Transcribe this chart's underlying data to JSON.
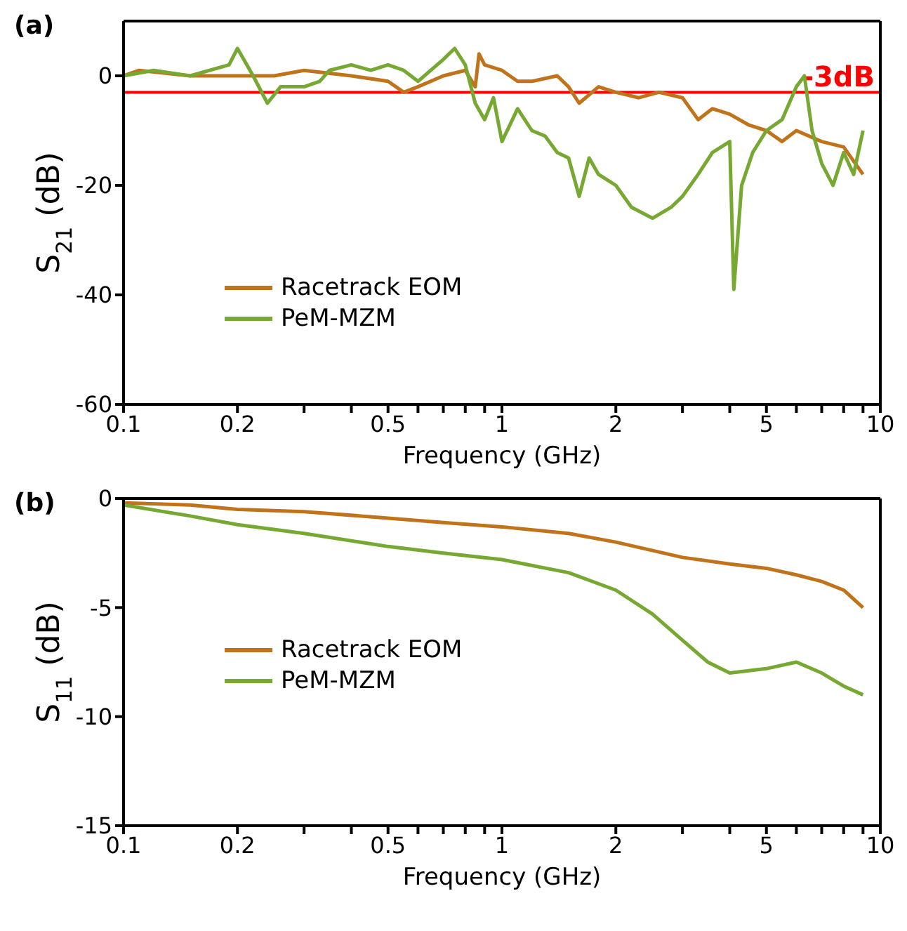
{
  "chart_data": [
    {
      "type": "line",
      "title": "(a)",
      "xlabel": "Frequency (GHz)",
      "ylabel": "S$_{21}$ (dB)",
      "log": "x",
      "grid": false,
      "legend": "center left",
      "marker": "none",
      "line_style": "solid",
      "xlim": [
        0.1,
        10
      ],
      "xticks": [
        0.1,
        {
          "value": 0.2,
          "label": "0.2"
        },
        {
          "value": 0.3,
          "label": null
        },
        {
          "value": 0.4,
          "label": null
        },
        {
          "value": 0.5,
          "label": "0.5"
        },
        {
          "value": 0.6,
          "label": null
        },
        {
          "value": 0.7,
          "label": null
        },
        {
          "value": 0.8,
          "label": null
        },
        {
          "value": 0.9,
          "label": null
        },
        1,
        2,
        {
          "value": 3,
          "label": null
        },
        {
          "value": 4,
          "label": null
        },
        5,
        {
          "value": 6,
          "label": null
        },
        {
          "value": 7,
          "label": null
        },
        {
          "value": 8,
          "label": null
        },
        {
          "value": 9,
          "label": null
        },
        10
      ],
      "ylim": [
        -60,
        10
      ],
      "yticks": [
        -60,
        -40,
        -20,
        0
      ],
      "ref_lines": [
        {
          "axis": "y",
          "value": -3,
          "label": "-3dB",
          "color": "#ff0000"
        }
      ],
      "series": [
        {
          "name": "Racetrack EOM",
          "color": "#c0731a",
          "x": [
            0.1,
            0.11,
            0.15,
            0.2,
            0.25,
            0.3,
            0.4,
            0.5,
            0.55,
            0.6,
            0.7,
            0.8,
            0.85,
            0.87,
            0.9,
            1.0,
            1.1,
            1.2,
            1.4,
            1.5,
            1.6,
            1.8,
            2.0,
            2.3,
            2.6,
            3.0,
            3.3,
            3.6,
            4.0,
            4.5,
            5.0,
            5.5,
            6.0,
            7.0,
            8.0,
            9.0
          ],
          "values": [
            0,
            1,
            0,
            0,
            0,
            1,
            0,
            -1,
            -3,
            -2,
            0,
            1,
            -2,
            4,
            2,
            1,
            -1,
            -1,
            0,
            -2,
            -5,
            -2,
            -3,
            -4,
            -3,
            -4,
            -8,
            -6,
            -7,
            -9,
            -10,
            -12,
            -10,
            -12,
            -13,
            -18
          ]
        },
        {
          "name": "PeM-MZM",
          "color": "#76a832",
          "x": [
            0.1,
            0.12,
            0.15,
            0.19,
            0.2,
            0.22,
            0.24,
            0.26,
            0.3,
            0.33,
            0.35,
            0.4,
            0.45,
            0.5,
            0.55,
            0.6,
            0.7,
            0.75,
            0.8,
            0.85,
            0.9,
            0.95,
            1.0,
            1.1,
            1.2,
            1.3,
            1.4,
            1.5,
            1.6,
            1.7,
            1.8,
            2.0,
            2.2,
            2.5,
            2.8,
            3.0,
            3.3,
            3.6,
            4.0,
            4.1,
            4.3,
            4.6,
            5.0,
            5.5,
            6.0,
            6.3,
            6.6,
            7.0,
            7.5,
            8.0,
            8.5,
            9.0
          ],
          "values": [
            0,
            1,
            0,
            2,
            5,
            0,
            -5,
            -2,
            -2,
            -1,
            1,
            2,
            1,
            2,
            1,
            -1,
            3,
            5,
            2,
            -5,
            -8,
            -4,
            -12,
            -6,
            -10,
            -11,
            -14,
            -15,
            -22,
            -15,
            -18,
            -20,
            -24,
            -26,
            -24,
            -22,
            -18,
            -14,
            -12,
            -39,
            -20,
            -14,
            -10,
            -8,
            -2,
            0,
            -10,
            -16,
            -20,
            -14,
            -18,
            -10
          ]
        }
      ]
    },
    {
      "type": "line",
      "title": "(b)",
      "xlabel": "Frequency (GHz)",
      "ylabel": "S$_{11}$ (dB)",
      "log": "x",
      "grid": false,
      "legend": "bottom left",
      "marker": "none",
      "line_style": "solid",
      "xlim": [
        0.1,
        10
      ],
      "xticks": [
        0.1,
        {
          "value": 0.2,
          "label": "0.2"
        },
        {
          "value": 0.3,
          "label": null
        },
        {
          "value": 0.4,
          "label": null
        },
        {
          "value": 0.5,
          "label": "0.5"
        },
        {
          "value": 0.6,
          "label": null
        },
        {
          "value": 0.7,
          "label": null
        },
        {
          "value": 0.8,
          "label": null
        },
        {
          "value": 0.9,
          "label": null
        },
        1,
        2,
        {
          "value": 3,
          "label": null
        },
        {
          "value": 4,
          "label": null
        },
        5,
        {
          "value": 6,
          "label": null
        },
        {
          "value": 7,
          "label": null
        },
        {
          "value": 8,
          "label": null
        },
        {
          "value": 9,
          "label": null
        },
        10
      ],
      "ylim": [
        -15,
        0
      ],
      "yticks": [
        -15,
        -10,
        -5,
        0
      ],
      "series": [
        {
          "name": "Racetrack EOM",
          "color": "#c0731a",
          "x": [
            0.1,
            0.15,
            0.2,
            0.3,
            0.5,
            0.7,
            1,
            1.5,
            2,
            3,
            4,
            5,
            6,
            7,
            8,
            9
          ],
          "values": [
            -0.2,
            -0.3,
            -0.5,
            -0.6,
            -0.9,
            -1.1,
            -1.3,
            -1.6,
            -2,
            -2.7,
            -3,
            -3.2,
            -3.5,
            -3.8,
            -4.2,
            -5
          ]
        },
        {
          "name": "PeM-MZM",
          "color": "#76a832",
          "x": [
            0.1,
            0.15,
            0.2,
            0.3,
            0.5,
            0.7,
            1,
            1.5,
            2,
            2.5,
            3,
            3.5,
            4,
            5,
            6,
            7,
            8,
            9
          ],
          "values": [
            -0.3,
            -0.8,
            -1.2,
            -1.6,
            -2.2,
            -2.5,
            -2.8,
            -3.4,
            -4.2,
            -5.3,
            -6.5,
            -7.5,
            -8,
            -7.8,
            -7.5,
            -8,
            -8.6,
            -9
          ]
        }
      ]
    }
  ]
}
